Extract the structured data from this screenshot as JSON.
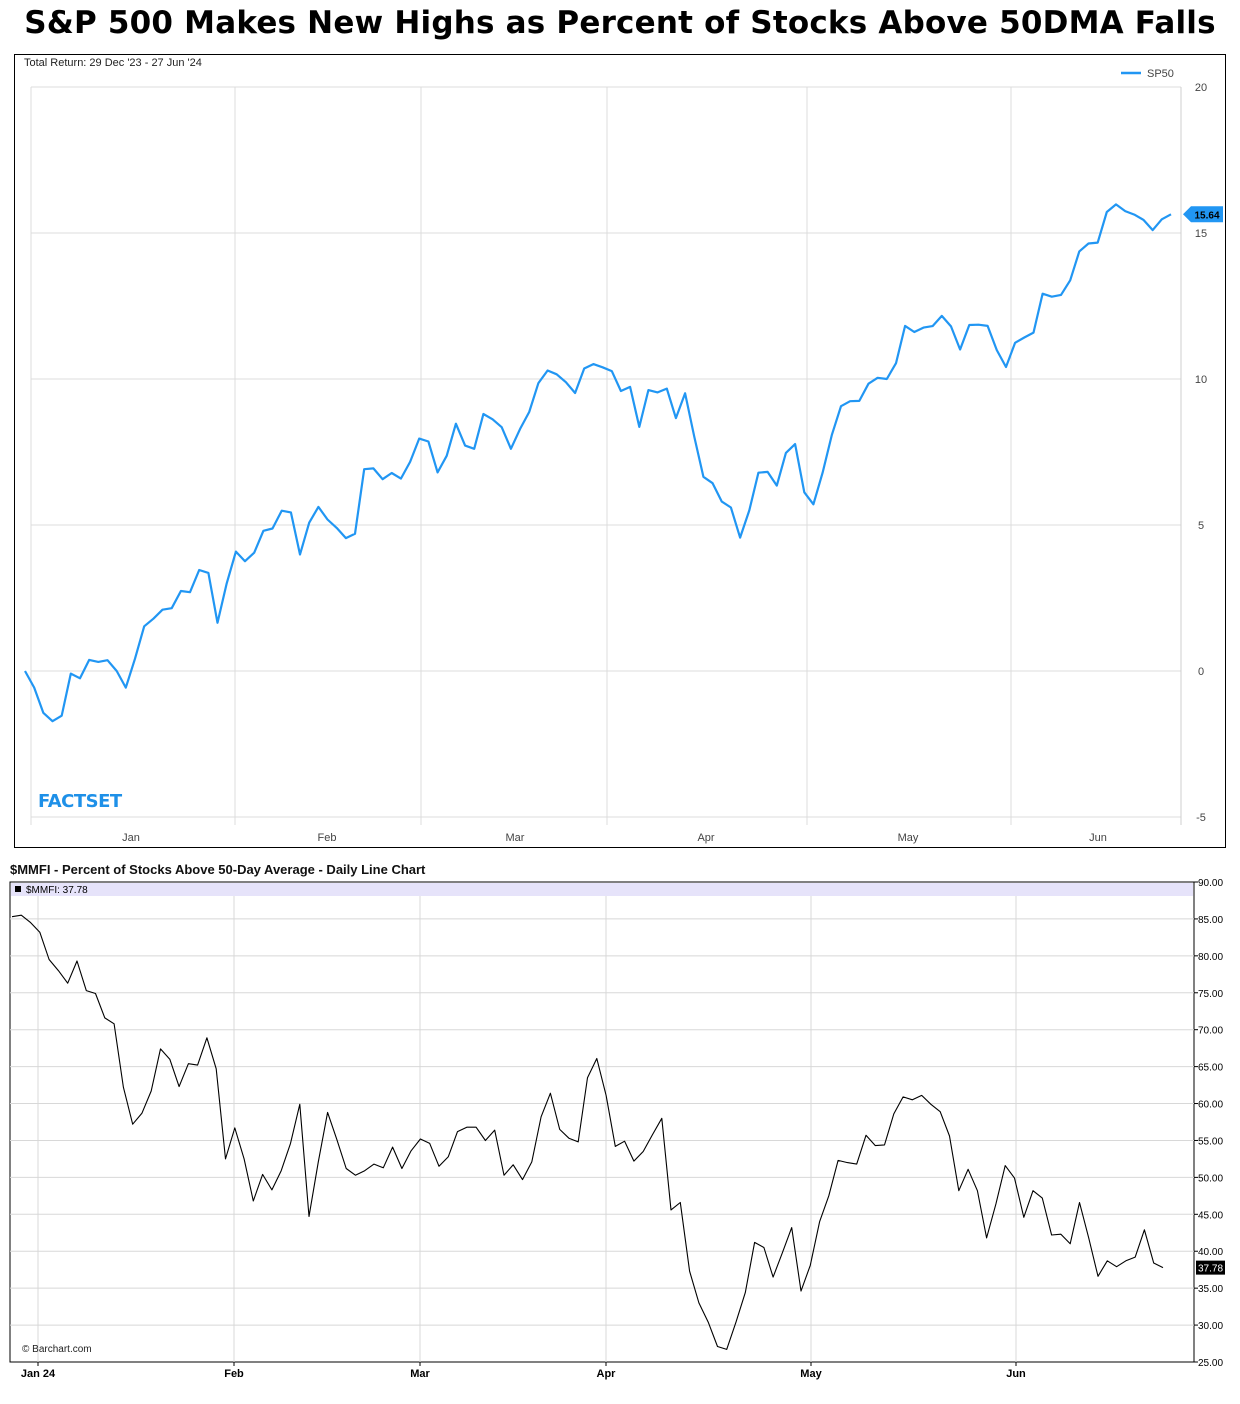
{
  "title": "S&P 500 Makes New Highs as Percent of Stocks Above 50DMA Falls",
  "chart_data": [
    {
      "type": "line",
      "subtitle": "Total Return: 29 Dec '23 - 27 Jun '24",
      "logo": "FACTSET",
      "legend_position": "top-right",
      "color": "#2196f3",
      "x_ticks": [
        "Jan",
        "Feb",
        "Mar",
        "Apr",
        "May",
        "Jun"
      ],
      "y_ticks": [
        "20",
        "15",
        "10",
        "5",
        "0",
        "-5"
      ],
      "ylim": [
        -5,
        20
      ],
      "grid": true,
      "last_value_label": "15.64",
      "series": [
        {
          "name": "SP50",
          "values": [
            0.0,
            -0.57,
            -1.43,
            -1.72,
            -1.53,
            -0.09,
            -0.25,
            0.38,
            0.31,
            0.37,
            0.0,
            -0.57,
            0.42,
            1.53,
            1.79,
            2.1,
            2.15,
            2.74,
            2.7,
            3.46,
            3.36,
            1.65,
            3.0,
            4.09,
            3.76,
            4.05,
            4.8,
            4.88,
            5.49,
            5.43,
            3.99,
            5.08,
            5.62,
            5.19,
            4.9,
            4.55,
            4.7,
            6.91,
            6.94,
            6.57,
            6.78,
            6.59,
            7.16,
            7.96,
            7.86,
            6.8,
            7.37,
            8.47,
            7.72,
            7.61,
            8.8,
            8.62,
            8.35,
            7.61,
            8.29,
            8.87,
            9.86,
            10.29,
            10.16,
            9.89,
            9.52,
            10.36,
            10.51,
            10.4,
            10.27,
            9.59,
            9.73,
            8.36,
            9.62,
            9.54,
            9.67,
            8.66,
            9.51,
            8.02,
            6.65,
            6.43,
            5.8,
            5.6,
            4.57,
            5.5,
            6.79,
            6.82,
            6.35,
            7.47,
            7.77,
            6.12,
            5.71,
            6.79,
            8.08,
            9.07,
            9.24,
            9.25,
            9.84,
            10.04,
            10.0,
            10.54,
            11.82,
            11.61,
            11.76,
            11.81,
            12.16,
            11.8,
            11.01,
            11.85,
            11.86,
            11.82,
            10.99,
            10.41,
            11.24,
            11.42,
            11.59,
            12.92,
            12.82,
            12.88,
            13.38,
            14.37,
            14.64,
            14.67,
            15.72,
            15.98,
            15.75,
            15.63,
            15.45,
            15.1,
            15.47,
            15.64
          ]
        }
      ]
    },
    {
      "type": "line",
      "title": "$MMFI - Percent of Stocks Above 50-Day Average - Daily Line Chart",
      "legend_label": "$MMFI: 37.78",
      "credit": "© Barchart.com",
      "color": "#000000",
      "x_ticks": [
        "Jan 24",
        "Feb",
        "Mar",
        "Apr",
        "May",
        "Jun"
      ],
      "y_ticks": [
        "90.00",
        "85.00",
        "80.00",
        "75.00",
        "70.00",
        "65.00",
        "60.00",
        "55.00",
        "50.00",
        "45.00",
        "40.00",
        "35.00",
        "30.00",
        "25.00"
      ],
      "ylim": [
        25,
        90
      ],
      "grid": true,
      "last_value_label": "37.78",
      "series": [
        {
          "name": "$MMFI",
          "values": [
            85.3,
            85.5,
            84.5,
            83.2,
            79.5,
            78.0,
            76.3,
            79.3,
            75.3,
            74.9,
            71.6,
            70.8,
            62.2,
            57.2,
            58.7,
            61.7,
            67.4,
            66.0,
            62.3,
            65.4,
            65.2,
            68.9,
            64.7,
            52.5,
            56.7,
            52.5,
            46.8,
            50.4,
            48.3,
            50.9,
            54.6,
            59.9,
            44.7,
            52.1,
            58.8,
            55.1,
            51.2,
            50.3,
            50.9,
            51.8,
            51.3,
            54.1,
            51.2,
            53.6,
            55.2,
            54.6,
            51.5,
            52.8,
            56.2,
            56.8,
            56.8,
            55.0,
            56.4,
            50.3,
            51.7,
            49.7,
            52.1,
            58.2,
            61.4,
            56.5,
            55.3,
            54.8,
            63.5,
            66.1,
            61.1,
            54.2,
            54.9,
            52.2,
            53.5,
            55.8,
            58.0,
            45.6,
            46.6,
            37.3,
            33.0,
            30.4,
            27.1,
            26.7,
            30.4,
            34.4,
            41.2,
            40.5,
            36.5,
            39.8,
            43.2,
            34.6,
            38.1,
            44.0,
            47.5,
            52.3,
            52.0,
            51.8,
            55.7,
            54.3,
            54.4,
            58.6,
            60.9,
            60.5,
            61.1,
            59.9,
            58.9,
            55.6,
            48.2,
            51.1,
            48.2,
            41.8,
            46.4,
            51.6,
            49.9,
            44.6,
            48.2,
            47.2,
            42.2,
            42.3,
            41.0,
            46.6,
            41.8,
            36.6,
            38.7,
            37.9,
            38.7,
            39.2,
            42.9,
            38.4,
            37.78
          ]
        }
      ]
    }
  ]
}
